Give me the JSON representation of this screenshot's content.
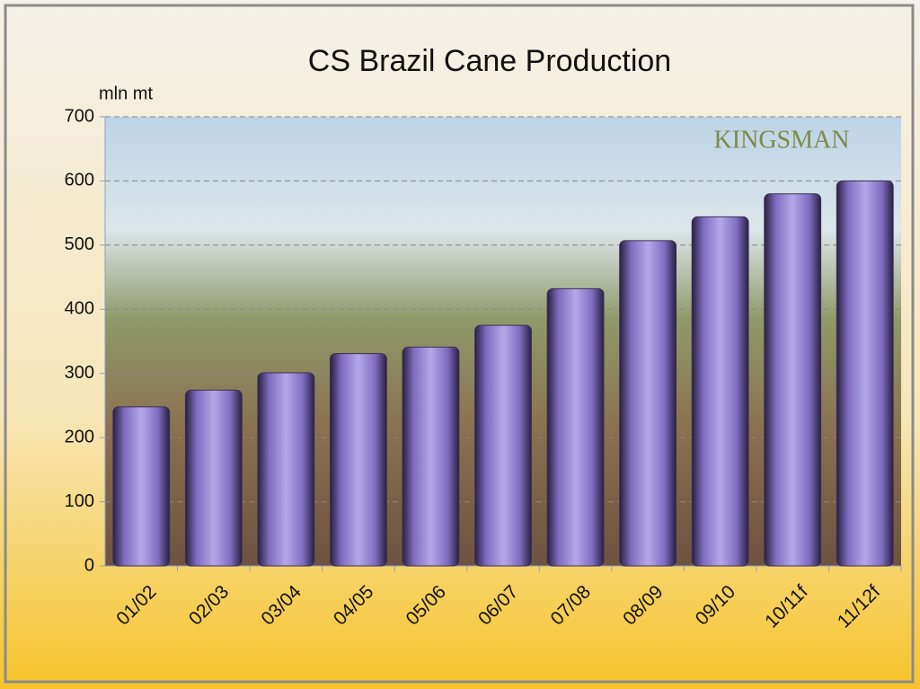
{
  "chart_data": {
    "type": "bar",
    "title": "CS Brazil Cane Production",
    "y_label": "mln mt",
    "logo": "KINGSMAN",
    "categories": [
      "01/02",
      "02/03",
      "03/04",
      "04/05",
      "05/06",
      "06/07",
      "07/08",
      "08/09",
      "09/10",
      "10/11f",
      "11/12f"
    ],
    "values": [
      248,
      274,
      301,
      331,
      341,
      375,
      432,
      507,
      544,
      580,
      600
    ],
    "color": "#8a78c8",
    "ylim": [
      0,
      700
    ],
    "yticks": [
      0,
      100,
      200,
      300,
      400,
      500,
      600,
      700
    ],
    "grid": true
  }
}
